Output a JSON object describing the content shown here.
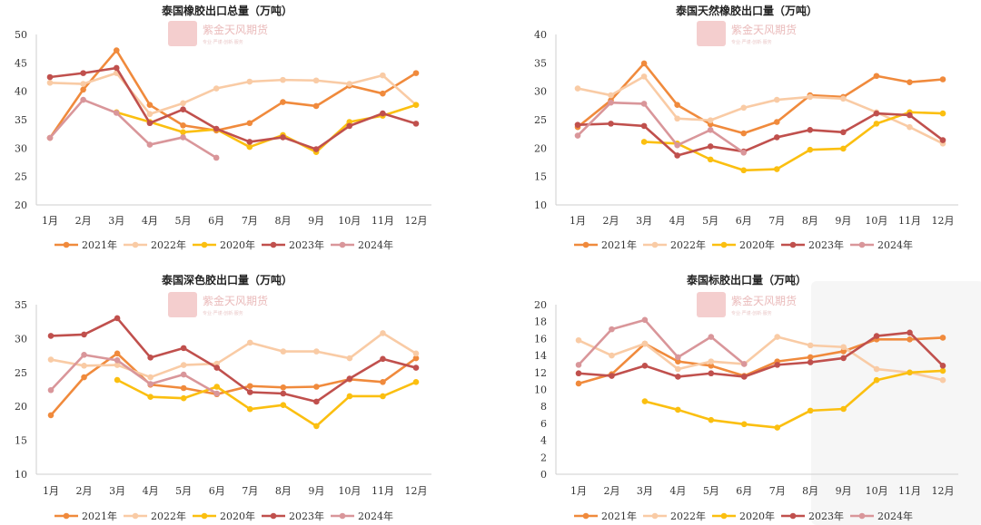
{
  "colors": {
    "2021年": "#f08a3c",
    "2022年": "#f9cba5",
    "2020年": "#fbbf10",
    "2023年": "#c0504d",
    "2024年": "#d9969a"
  },
  "watermark": {
    "brand": "紫金天风期货",
    "tagline": "专业·严谨·创新·服务"
  },
  "chart_data": [
    {
      "type": "line",
      "title": "泰国橡胶出口总量（万吨）",
      "categories": [
        "1月",
        "2月",
        "3月",
        "4月",
        "5月",
        "6月",
        "7月",
        "8月",
        "9月",
        "10月",
        "11月",
        "12月"
      ],
      "ylim": [
        20,
        50
      ],
      "yticks": [
        20,
        25,
        30,
        35,
        40,
        45,
        50
      ],
      "grid": false,
      "legend": "bottom",
      "series": [
        {
          "name": "2021年",
          "values": [
            31.8,
            40.3,
            47.2,
            37.6,
            34.0,
            33.1,
            34.4,
            38.1,
            37.4,
            41.0,
            39.6,
            43.2
          ]
        },
        {
          "name": "2022年",
          "values": [
            41.5,
            41.3,
            43.2,
            36.0,
            37.9,
            40.5,
            41.7,
            42.0,
            41.9,
            41.3,
            42.8,
            37.6
          ]
        },
        {
          "name": "2020年",
          "values": [
            null,
            null,
            36.3,
            34.6,
            32.8,
            33.3,
            30.2,
            32.3,
            29.3,
            34.6,
            35.7,
            37.6
          ]
        },
        {
          "name": "2023年",
          "values": [
            42.5,
            43.2,
            44.1,
            34.4,
            36.8,
            33.4,
            31.1,
            31.9,
            29.8,
            33.9,
            36.1,
            34.3
          ]
        },
        {
          "name": "2024年",
          "values": [
            31.8,
            38.5,
            36.2,
            30.6,
            31.9,
            28.3,
            null,
            null,
            null,
            null,
            null,
            null
          ]
        }
      ]
    },
    {
      "type": "line",
      "title": "泰国天然橡胶出口量（万吨）",
      "categories": [
        "1月",
        "2月",
        "3月",
        "4月",
        "5月",
        "6月",
        "7月",
        "8月",
        "9月",
        "10月",
        "11月",
        "12月"
      ],
      "ylim": [
        10,
        40
      ],
      "yticks": [
        10,
        15,
        20,
        25,
        30,
        35,
        40
      ],
      "grid": false,
      "legend": "bottom",
      "series": [
        {
          "name": "2021年",
          "values": [
            23.7,
            28.4,
            34.9,
            27.6,
            24.2,
            22.6,
            24.6,
            29.3,
            29.0,
            32.7,
            31.6,
            32.1
          ]
        },
        {
          "name": "2022年",
          "values": [
            30.5,
            29.3,
            32.6,
            25.2,
            24.9,
            27.1,
            28.5,
            29.0,
            28.7,
            26.3,
            23.7,
            20.8
          ]
        },
        {
          "name": "2020年",
          "values": [
            null,
            null,
            21.1,
            20.8,
            18.0,
            16.1,
            16.3,
            19.7,
            19.9,
            24.3,
            26.3,
            26.1
          ]
        },
        {
          "name": "2023年",
          "values": [
            24.1,
            24.3,
            23.9,
            18.7,
            20.3,
            19.4,
            21.9,
            23.2,
            22.8,
            26.1,
            25.8,
            21.4
          ]
        },
        {
          "name": "2024年",
          "values": [
            22.2,
            28.0,
            27.8,
            20.5,
            23.2,
            19.2,
            null,
            null,
            null,
            null,
            null,
            null
          ]
        }
      ]
    },
    {
      "type": "line",
      "title": "泰国深色胶出口量（万吨）",
      "categories": [
        "1月",
        "2月",
        "3月",
        "4月",
        "5月",
        "6月",
        "7月",
        "8月",
        "9月",
        "10月",
        "11月",
        "12月"
      ],
      "ylim": [
        10,
        35
      ],
      "yticks": [
        10,
        15,
        20,
        25,
        30,
        35
      ],
      "grid": false,
      "legend": "bottom",
      "series": [
        {
          "name": "2021年",
          "values": [
            18.7,
            24.3,
            27.8,
            23.2,
            22.7,
            21.8,
            23.0,
            22.8,
            22.9,
            24.0,
            23.6,
            27.1
          ]
        },
        {
          "name": "2022年",
          "values": [
            26.9,
            26.0,
            26.1,
            24.3,
            26.1,
            26.3,
            29.4,
            28.1,
            28.1,
            27.1,
            30.8,
            27.8
          ]
        },
        {
          "name": "2020年",
          "values": [
            null,
            null,
            23.9,
            21.4,
            21.2,
            22.9,
            19.6,
            20.2,
            17.1,
            21.5,
            21.5,
            23.6
          ]
        },
        {
          "name": "2023年",
          "values": [
            30.4,
            30.6,
            33.0,
            27.2,
            28.6,
            25.7,
            22.1,
            21.9,
            20.7,
            24.1,
            27.0,
            25.7
          ]
        },
        {
          "name": "2024年",
          "values": [
            22.4,
            27.6,
            26.8,
            23.3,
            24.7,
            21.9,
            null,
            null,
            null,
            null,
            null,
            null
          ]
        }
      ]
    },
    {
      "type": "line",
      "title": "泰国标胶出口量（万吨）",
      "categories": [
        "1月",
        "2月",
        "3月",
        "4月",
        "5月",
        "6月",
        "7月",
        "8月",
        "9月",
        "10月",
        "11月",
        "12月"
      ],
      "ylim": [
        0,
        20
      ],
      "yticks": [
        0,
        2,
        4,
        6,
        8,
        10,
        12,
        14,
        16,
        18,
        20
      ],
      "grid": false,
      "legend": "bottom",
      "series": [
        {
          "name": "2021年",
          "values": [
            10.7,
            11.8,
            15.4,
            13.3,
            12.8,
            11.6,
            13.3,
            13.8,
            14.5,
            15.9,
            15.9,
            16.1
          ]
        },
        {
          "name": "2022年",
          "values": [
            15.8,
            14.0,
            15.4,
            12.4,
            13.3,
            13.0,
            16.2,
            15.2,
            15.0,
            12.4,
            12.0,
            11.1
          ]
        },
        {
          "name": "2020年",
          "values": [
            null,
            null,
            8.6,
            7.6,
            6.4,
            5.9,
            5.5,
            7.5,
            7.7,
            11.1,
            12.0,
            12.2
          ]
        },
        {
          "name": "2023年",
          "values": [
            11.9,
            11.6,
            12.8,
            11.5,
            11.9,
            11.5,
            12.9,
            13.2,
            13.7,
            16.3,
            16.7,
            12.8
          ]
        },
        {
          "name": "2024年",
          "values": [
            12.9,
            17.1,
            18.2,
            13.8,
            16.2,
            13.0,
            null,
            null,
            null,
            null,
            null,
            null
          ]
        }
      ]
    }
  ]
}
